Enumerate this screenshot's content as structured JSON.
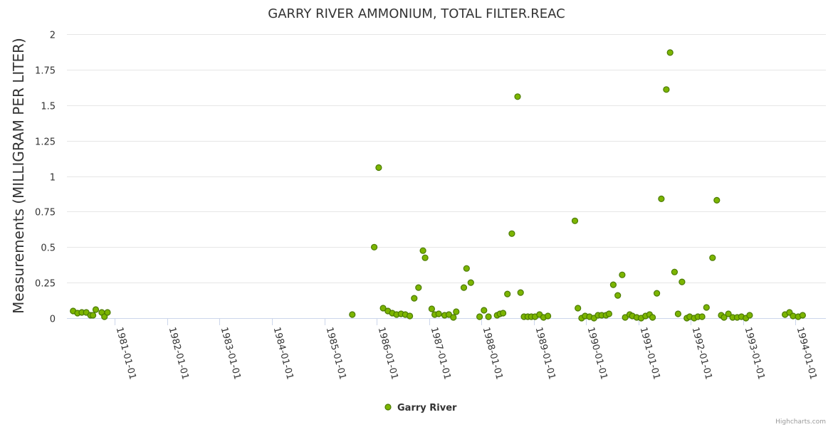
{
  "chart_data": {
    "type": "scatter",
    "title": "GARRY RIVER AMMONIUM, TOTAL FILTER.REAC",
    "xlabel": "",
    "ylabel": "Measurements (MILLIGRAM PER LITER)",
    "x_type": "datetime",
    "xlim": [
      "1980-02-01",
      "1994-08-01"
    ],
    "ylim": [
      0,
      2
    ],
    "y_ticks": [
      "0",
      "0.25",
      "0.5",
      "0.75",
      "1",
      "1.25",
      "1.5",
      "1.75",
      "2"
    ],
    "x_ticks": [
      "1981-01-01",
      "1982-01-01",
      "1983-01-01",
      "1984-01-01",
      "1985-01-01",
      "1986-01-01",
      "1987-01-01",
      "1988-01-01",
      "1989-01-01",
      "1990-01-01",
      "1991-01-01",
      "1992-01-01",
      "1993-01-01",
      "1994-01-01"
    ],
    "grid": true,
    "legend_position": "bottom-center",
    "series": [
      {
        "name": "Garry River",
        "color": "#7cb500",
        "points": [
          [
            "1980-03-15",
            0.05
          ],
          [
            "1980-04-15",
            0.035
          ],
          [
            "1980-05-15",
            0.04
          ],
          [
            "1980-06-15",
            0.04
          ],
          [
            "1980-07-15",
            0.02
          ],
          [
            "1980-08-01",
            0.02
          ],
          [
            "1980-08-20",
            0.06
          ],
          [
            "1980-10-01",
            0.04
          ],
          [
            "1980-10-20",
            0.01
          ],
          [
            "1980-11-10",
            0.04
          ],
          [
            "1985-07-15",
            0.025
          ],
          [
            "1985-12-15",
            0.5
          ],
          [
            "1986-01-15",
            1.06
          ],
          [
            "1986-02-15",
            0.07
          ],
          [
            "1986-03-20",
            0.05
          ],
          [
            "1986-04-20",
            0.035
          ],
          [
            "1986-05-20",
            0.025
          ],
          [
            "1986-06-20",
            0.03
          ],
          [
            "1986-07-20",
            0.025
          ],
          [
            "1986-08-20",
            0.015
          ],
          [
            "1986-09-20",
            0.14
          ],
          [
            "1986-10-20",
            0.215
          ],
          [
            "1986-11-20",
            0.475
          ],
          [
            "1986-12-05",
            0.425
          ],
          [
            "1987-01-20",
            0.065
          ],
          [
            "1987-02-10",
            0.025
          ],
          [
            "1987-03-10",
            0.03
          ],
          [
            "1987-04-20",
            0.02
          ],
          [
            "1987-05-20",
            0.025
          ],
          [
            "1987-06-20",
            0.005
          ],
          [
            "1987-07-10",
            0.045
          ],
          [
            "1987-09-01",
            0.215
          ],
          [
            "1987-09-20",
            0.35
          ],
          [
            "1987-10-20",
            0.25
          ],
          [
            "1987-12-20",
            0.01
          ],
          [
            "1988-01-20",
            0.055
          ],
          [
            "1988-02-20",
            0.01
          ],
          [
            "1988-04-20",
            0.02
          ],
          [
            "1988-05-10",
            0.03
          ],
          [
            "1988-06-01",
            0.035
          ],
          [
            "1988-07-01",
            0.17
          ],
          [
            "1988-08-01",
            0.595
          ],
          [
            "1988-09-10",
            1.56
          ],
          [
            "1988-10-01",
            0.18
          ],
          [
            "1988-10-25",
            0.01
          ],
          [
            "1988-11-20",
            0.01
          ],
          [
            "1988-12-15",
            0.01
          ],
          [
            "1989-01-10",
            0.01
          ],
          [
            "1989-02-10",
            0.025
          ],
          [
            "1989-03-10",
            0.005
          ],
          [
            "1989-04-10",
            0.015
          ],
          [
            "1989-10-15",
            0.685
          ],
          [
            "1989-11-05",
            0.07
          ],
          [
            "1989-12-01",
            0.0
          ],
          [
            "1989-12-25",
            0.015
          ],
          [
            "1990-01-25",
            0.01
          ],
          [
            "1990-02-25",
            0.0
          ],
          [
            "1990-03-25",
            0.02
          ],
          [
            "1990-04-20",
            0.02
          ],
          [
            "1990-05-20",
            0.02
          ],
          [
            "1990-06-10",
            0.03
          ],
          [
            "1990-07-10",
            0.235
          ],
          [
            "1990-08-10",
            0.16
          ],
          [
            "1990-09-10",
            0.305
          ],
          [
            "1990-10-01",
            0.005
          ],
          [
            "1990-11-01",
            0.025
          ],
          [
            "1990-11-20",
            0.015
          ],
          [
            "1990-12-20",
            0.005
          ],
          [
            "1991-01-20",
            0.0
          ],
          [
            "1991-02-20",
            0.015
          ],
          [
            "1991-03-20",
            0.025
          ],
          [
            "1991-04-10",
            0.005
          ],
          [
            "1991-05-10",
            0.175
          ],
          [
            "1991-06-10",
            0.84
          ],
          [
            "1991-07-15",
            1.61
          ],
          [
            "1991-08-10",
            1.87
          ],
          [
            "1991-09-10",
            0.325
          ],
          [
            "1991-10-05",
            0.03
          ],
          [
            "1991-11-01",
            0.255
          ],
          [
            "1991-12-05",
            0.0
          ],
          [
            "1991-12-25",
            0.01
          ],
          [
            "1992-01-25",
            0.0
          ],
          [
            "1992-02-20",
            0.01
          ],
          [
            "1992-03-20",
            0.01
          ],
          [
            "1992-04-20",
            0.075
          ],
          [
            "1992-06-01",
            0.425
          ],
          [
            "1992-07-01",
            0.83
          ],
          [
            "1992-08-01",
            0.02
          ],
          [
            "1992-08-20",
            0.005
          ],
          [
            "1992-09-20",
            0.03
          ],
          [
            "1992-10-20",
            0.005
          ],
          [
            "1992-11-20",
            0.005
          ],
          [
            "1992-12-20",
            0.01
          ],
          [
            "1993-01-20",
            0.0
          ],
          [
            "1993-02-15",
            0.02
          ],
          [
            "1993-10-20",
            0.025
          ],
          [
            "1993-11-20",
            0.04
          ],
          [
            "1993-12-15",
            0.015
          ],
          [
            "1994-01-20",
            0.01
          ],
          [
            "1994-02-20",
            0.02
          ]
        ]
      }
    ]
  },
  "credits": "Highcharts.com"
}
